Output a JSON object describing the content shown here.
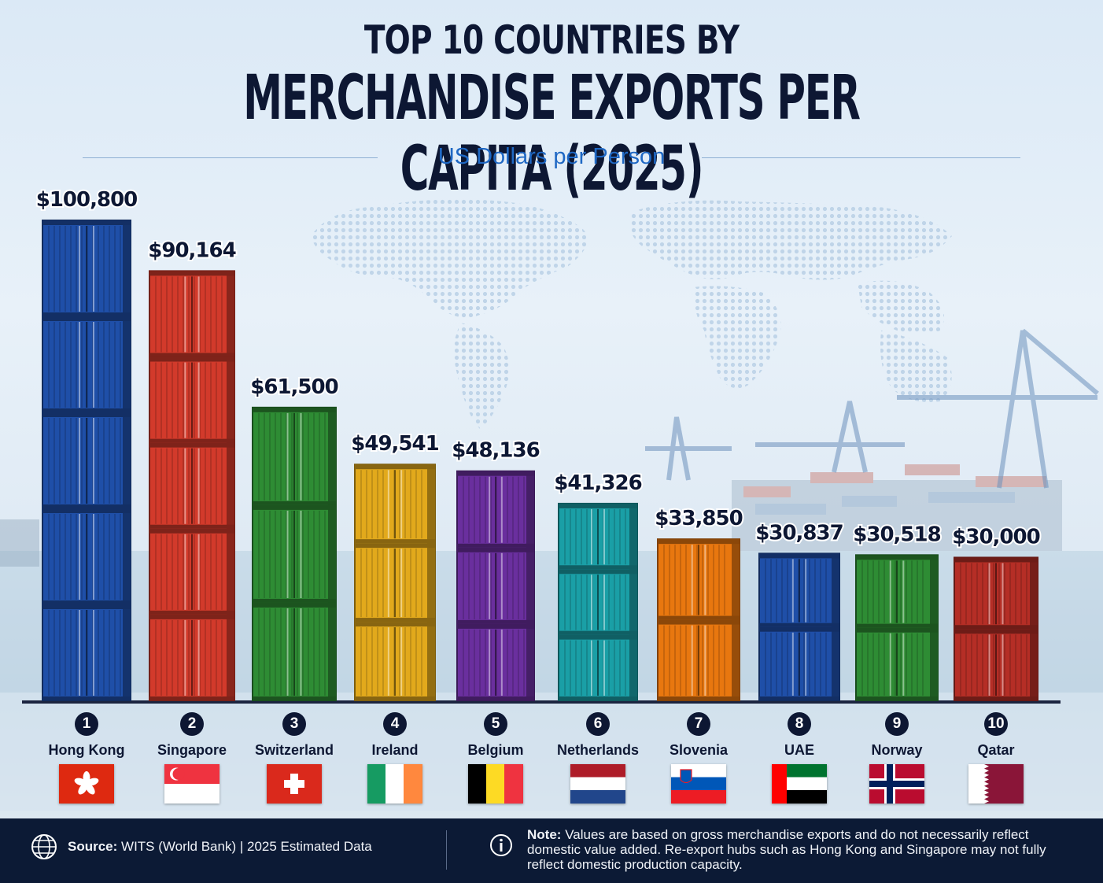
{
  "header": {
    "title_line1": "TOP 10 COUNTRIES BY",
    "title_line2": "MERCHANDISE EXPORTS PER CAPITA (2025)",
    "subtitle": "US Dollars per Person"
  },
  "chart_data": {
    "type": "bar",
    "title": "TOP 10 COUNTRIES BY MERCHANDISE EXPORTS PER CAPITA (2025)",
    "subtitle": "US Dollars per Person",
    "categories": [
      "Hong Kong",
      "Singapore",
      "Switzerland",
      "Ireland",
      "Belgium",
      "Netherlands",
      "Slovenia",
      "UAE",
      "Norway",
      "Qatar"
    ],
    "ranks": [
      "1",
      "2",
      "3",
      "4",
      "5",
      "6",
      "7",
      "8",
      "9",
      "10"
    ],
    "values": [
      100800,
      90164,
      61500,
      49541,
      48136,
      41326,
      33850,
      30837,
      30518,
      30000
    ],
    "value_labels": [
      "$100,800",
      "$90,164",
      "$61,500",
      "$49,541",
      "$48,136",
      "$41,326",
      "$33,850",
      "$30,837",
      "$30,518",
      "$30,000"
    ],
    "bar_colors": [
      "#1f4fa8",
      "#d23a2b",
      "#2e8c34",
      "#e2a91c",
      "#6a2f9e",
      "#1a9fa6",
      "#e8770f",
      "#1f4fa8",
      "#2e8c34",
      "#b52e26"
    ],
    "containers_per_bar": [
      5,
      5,
      3,
      3,
      3,
      3,
      2,
      2,
      2,
      2
    ],
    "ylim": [
      0,
      100800
    ],
    "grid": false,
    "legend": "none"
  },
  "flags": [
    "hong-kong",
    "singapore",
    "switzerland",
    "ireland",
    "belgium",
    "netherlands",
    "slovenia",
    "uae",
    "norway",
    "qatar"
  ],
  "footer": {
    "source_label": "Source:",
    "source_text": "WITS (World Bank) | 2025 Estimated Data",
    "note_label": "Note:",
    "note_text": "Values are based on gross merchandise exports and do not necessarily reflect domestic value added. Re-export hubs such as Hong Kong and Singapore may not fully reflect domestic production capacity."
  }
}
